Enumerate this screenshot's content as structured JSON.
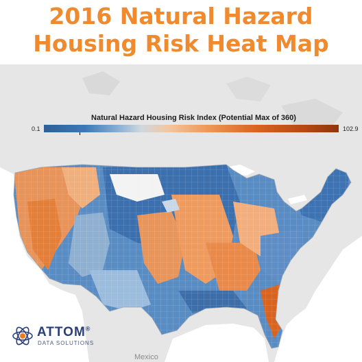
{
  "title": {
    "line1": "2016 Natural Hazard",
    "line2": "Housing Risk Heat Map"
  },
  "legend": {
    "title": "Natural Hazard Housing Risk Index (Potential Max of 360)",
    "min": "0.1",
    "max": "102.9",
    "colors": [
      "#2f5f97",
      "#3d78b6",
      "#8fb4d6",
      "#cfd8df",
      "#f2c7a2",
      "#ef9a5a",
      "#d9641f",
      "#8f360c"
    ]
  },
  "basemap": {
    "labels": {
      "mexico": "Mexico"
    },
    "colors": {
      "land": "#e6e6e6",
      "water": "#ffffff",
      "county_border": "#c8c8c8"
    }
  },
  "logo": {
    "brand": "ATTOM",
    "trademark": "®",
    "tagline": "DATA SOLUTIONS",
    "icon": "atom-icon"
  }
}
